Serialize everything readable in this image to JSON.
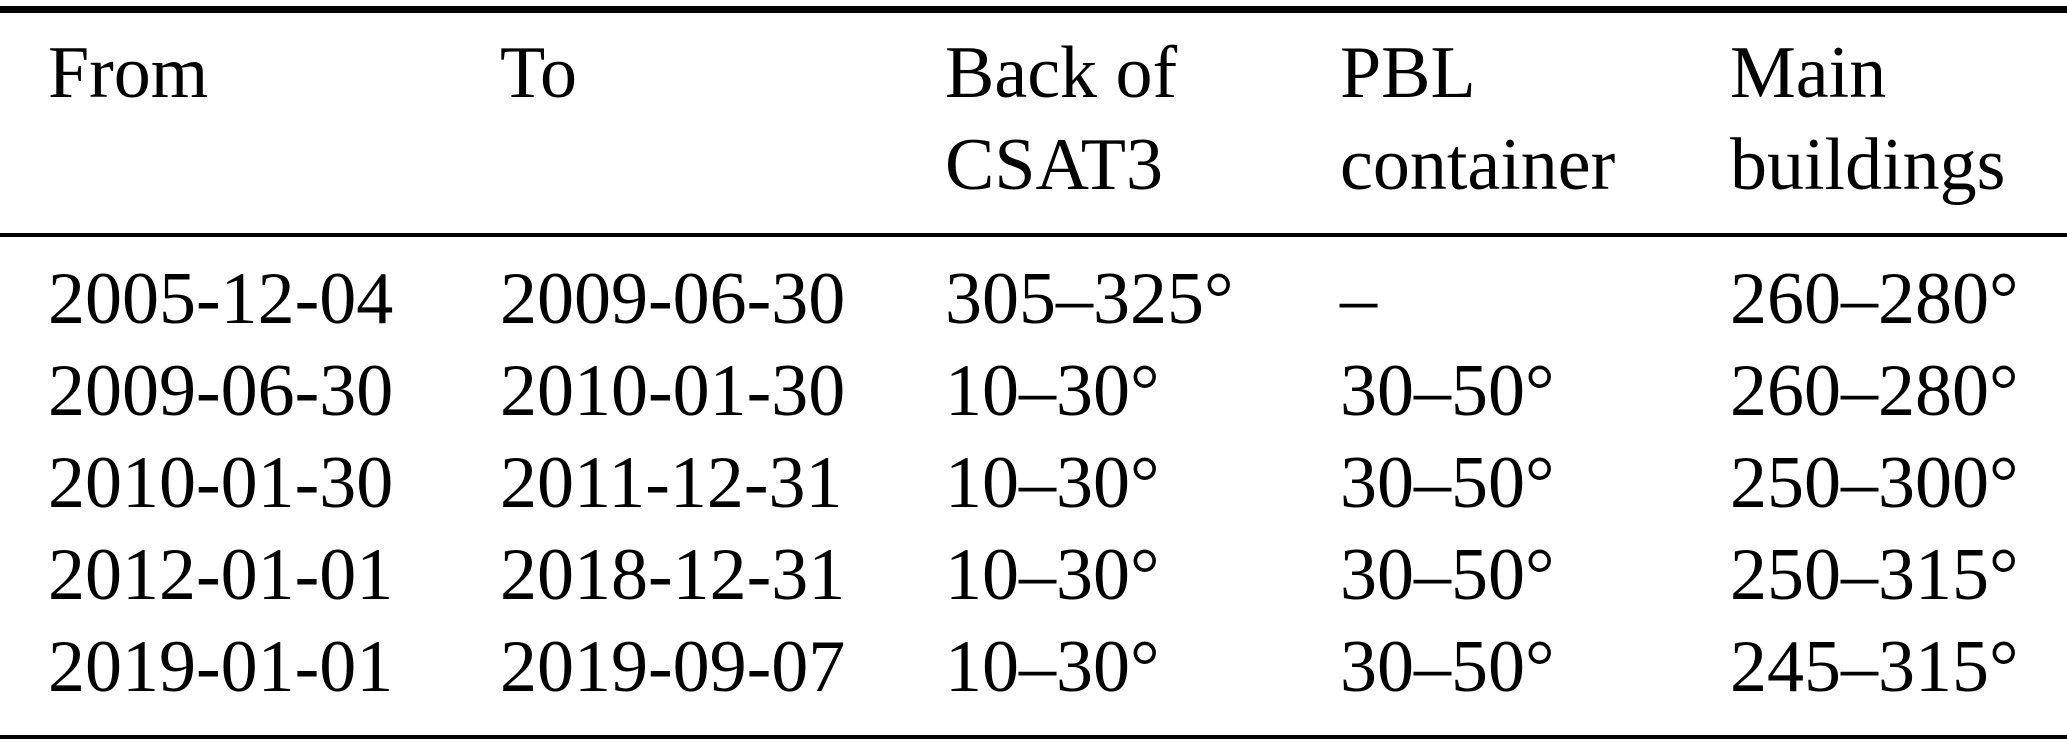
{
  "table": {
    "headers": [
      "From",
      "To",
      "Back of\nCSAT3",
      "PBL\ncontainer",
      "Main\nbuildings"
    ],
    "rows": [
      [
        "2005-12-04",
        "2009-06-30",
        "305–325°",
        "–",
        "260–280°"
      ],
      [
        "2009-06-30",
        "2010-01-30",
        "10–30°",
        "30–50°",
        "260–280°"
      ],
      [
        "2010-01-30",
        "2011-12-31",
        "10–30°",
        "30–50°",
        "250–300°"
      ],
      [
        "2012-01-01",
        "2018-12-31",
        "10–30°",
        "30–50°",
        "250–315°"
      ],
      [
        "2019-01-01",
        "2019-09-07",
        "10–30°",
        "30–50°",
        "245–315°"
      ]
    ]
  },
  "colors": {
    "text": "#000000",
    "background": "#ffffff",
    "rule": "#000000"
  }
}
